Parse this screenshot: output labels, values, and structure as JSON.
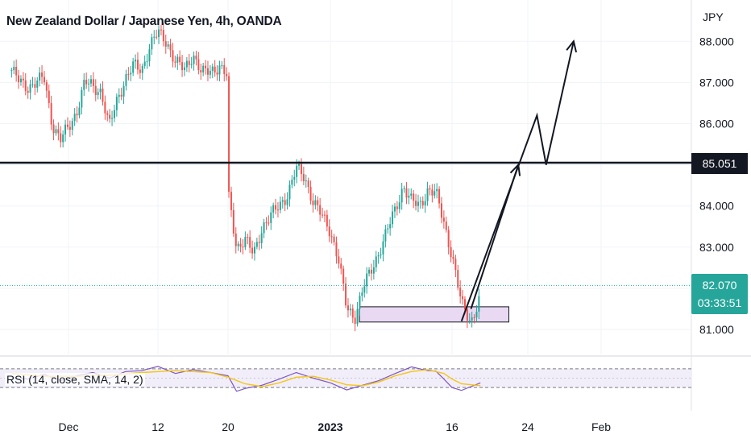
{
  "header": {
    "title": "New Zealand Dollar / Japanese Yen, 4h, OANDA"
  },
  "price_axis": {
    "currency": "JPY"
  },
  "tags": {
    "level": "85.051",
    "last_price": "82.070",
    "countdown": "03:33:51"
  },
  "rsi": {
    "label": "RSI (14, close, SMA, 14, 2)",
    "bands": [
      70,
      30
    ]
  },
  "colors": {
    "up": "#26a69a",
    "down": "#ef5350",
    "level_line": "#131722",
    "zone_fill": "#e9d9f3",
    "rsi_line": "#7e57c2",
    "rsi_ma": "#f5c518",
    "rsi_band_fill": "#ede7f6",
    "last_price_tag": "#26a69a"
  },
  "chart_data": {
    "type": "candlestick",
    "title": "New Zealand Dollar / Japanese Yen, 4h, OANDA",
    "y_axis_unit": "JPY",
    "y_ticks": [
      81.0,
      82.0,
      83.0,
      84.0,
      85.0,
      86.0,
      87.0,
      88.0
    ],
    "y_tick_labels": [
      "81.000",
      "83.000",
      "84.000",
      "86.000",
      "87.000",
      "88.000"
    ],
    "ylim": [
      80.6,
      88.7
    ],
    "x_tick_labels": [
      "Dec",
      "12",
      "20",
      "2023",
      "16",
      "24",
      "Feb"
    ],
    "x_tick_dates": [
      "2022-12-01",
      "2022-12-12",
      "2022-12-20",
      "2023-01-01",
      "2023-01-16",
      "2023-01-24",
      "2023-02-01"
    ],
    "horizontal_level": 85.051,
    "last_price": 82.07,
    "countdown": "03:33:51",
    "price_path": [
      [
        "2022-11-24",
        87.3
      ],
      [
        "2022-11-25",
        87.0
      ],
      [
        "2022-11-26",
        86.9
      ],
      [
        "2022-11-28",
        87.1
      ],
      [
        "2022-11-29",
        86.0
      ],
      [
        "2022-11-30",
        85.6
      ],
      [
        "2022-12-01",
        85.9
      ],
      [
        "2022-12-02",
        86.3
      ],
      [
        "2022-12-03",
        87.0
      ],
      [
        "2022-12-05",
        86.8
      ],
      [
        "2022-12-06",
        85.9
      ],
      [
        "2022-12-07",
        86.6
      ],
      [
        "2022-12-08",
        87.1
      ],
      [
        "2022-12-09",
        87.4
      ],
      [
        "2022-12-10",
        87.3
      ],
      [
        "2022-12-11",
        87.9
      ],
      [
        "2022-12-12",
        88.2
      ],
      [
        "2022-12-13",
        88.0
      ],
      [
        "2022-12-14",
        87.5
      ],
      [
        "2022-12-15",
        87.3
      ],
      [
        "2022-12-16",
        87.7
      ],
      [
        "2022-12-17",
        87.2
      ],
      [
        "2022-12-19",
        87.4
      ],
      [
        "2022-12-20",
        87.1
      ],
      [
        "2022-12-20",
        84.3
      ],
      [
        "2022-12-21",
        83.0
      ],
      [
        "2022-12-22",
        83.2
      ],
      [
        "2022-12-23",
        82.8
      ],
      [
        "2022-12-24",
        83.5
      ],
      [
        "2022-12-26",
        84.0
      ],
      [
        "2022-12-27",
        84.3
      ],
      [
        "2022-12-28",
        84.9
      ],
      [
        "2022-12-29",
        84.7
      ],
      [
        "2022-12-30",
        84.1
      ],
      [
        "2023-01-01",
        83.4
      ],
      [
        "2023-01-02",
        82.7
      ],
      [
        "2023-01-03",
        81.5
      ],
      [
        "2023-01-04",
        81.3
      ],
      [
        "2023-01-05",
        82.0
      ],
      [
        "2023-01-06",
        82.4
      ],
      [
        "2023-01-07",
        82.9
      ],
      [
        "2023-01-08",
        83.4
      ],
      [
        "2023-01-09",
        83.9
      ],
      [
        "2023-01-10",
        84.5
      ],
      [
        "2023-01-11",
        84.1
      ],
      [
        "2023-01-12",
        84.0
      ],
      [
        "2023-01-13",
        84.4
      ],
      [
        "2023-01-14",
        84.3
      ],
      [
        "2023-01-15",
        83.6
      ],
      [
        "2023-01-16",
        82.8
      ],
      [
        "2023-01-17",
        81.6
      ],
      [
        "2023-01-18",
        81.2
      ],
      [
        "2023-01-19",
        81.8
      ],
      [
        "2023-01-19",
        82.07
      ]
    ],
    "support_zone": {
      "from": "2023-01-03",
      "to": "2023-01-22",
      "low": 81.18,
      "high": 81.55
    },
    "drawings": {
      "arrow_1": [
        [
          "2023-01-18",
          81.5
        ],
        [
          "2023-01-23",
          85.0
        ]
      ],
      "arrow_2": [
        [
          "2023-01-17",
          81.2
        ],
        [
          "2023-01-25",
          86.2
        ],
        [
          "2023-01-26",
          85.0
        ],
        [
          "2023-01-29",
          88.0
        ]
      ]
    },
    "rsi_ylim": [
      20,
      80
    ],
    "rsi_path": [
      [
        "2022-11-24",
        52
      ],
      [
        "2022-11-26",
        48
      ],
      [
        "2022-11-28",
        58
      ],
      [
        "2022-11-30",
        45
      ],
      [
        "2022-12-02",
        55
      ],
      [
        "2022-12-04",
        62
      ],
      [
        "2022-12-06",
        50
      ],
      [
        "2022-12-08",
        64
      ],
      [
        "2022-12-10",
        66
      ],
      [
        "2022-12-12",
        75
      ],
      [
        "2022-12-14",
        60
      ],
      [
        "2022-12-16",
        68
      ],
      [
        "2022-12-18",
        62
      ],
      [
        "2022-12-20",
        55
      ],
      [
        "2022-12-21",
        22
      ],
      [
        "2022-12-22",
        28
      ],
      [
        "2022-12-24",
        35
      ],
      [
        "2022-12-26",
        48
      ],
      [
        "2022-12-28",
        62
      ],
      [
        "2022-12-30",
        50
      ],
      [
        "2023-01-01",
        40
      ],
      [
        "2023-01-03",
        25
      ],
      [
        "2023-01-05",
        35
      ],
      [
        "2023-01-07",
        45
      ],
      [
        "2023-01-09",
        60
      ],
      [
        "2023-01-11",
        74
      ],
      [
        "2023-01-13",
        66
      ],
      [
        "2023-01-14",
        65
      ],
      [
        "2023-01-15",
        48
      ],
      [
        "2023-01-16",
        30
      ],
      [
        "2023-01-17",
        24
      ],
      [
        "2023-01-18",
        32
      ],
      [
        "2023-01-19",
        40
      ]
    ],
    "rsi_ma_path": [
      [
        "2022-11-24",
        60
      ],
      [
        "2022-11-28",
        54
      ],
      [
        "2022-12-02",
        54
      ],
      [
        "2022-12-06",
        56
      ],
      [
        "2022-12-10",
        62
      ],
      [
        "2022-12-14",
        66
      ],
      [
        "2022-12-18",
        62
      ],
      [
        "2022-12-20",
        52
      ],
      [
        "2022-12-22",
        38
      ],
      [
        "2022-12-24",
        32
      ],
      [
        "2022-12-26",
        40
      ],
      [
        "2022-12-28",
        52
      ],
      [
        "2022-12-30",
        54
      ],
      [
        "2023-01-01",
        46
      ],
      [
        "2023-01-03",
        36
      ],
      [
        "2023-01-05",
        34
      ],
      [
        "2023-01-07",
        42
      ],
      [
        "2023-01-09",
        55
      ],
      [
        "2023-01-11",
        64
      ],
      [
        "2023-01-13",
        68
      ],
      [
        "2023-01-15",
        60
      ],
      [
        "2023-01-16",
        48
      ],
      [
        "2023-01-17",
        38
      ],
      [
        "2023-01-19",
        34
      ]
    ]
  }
}
